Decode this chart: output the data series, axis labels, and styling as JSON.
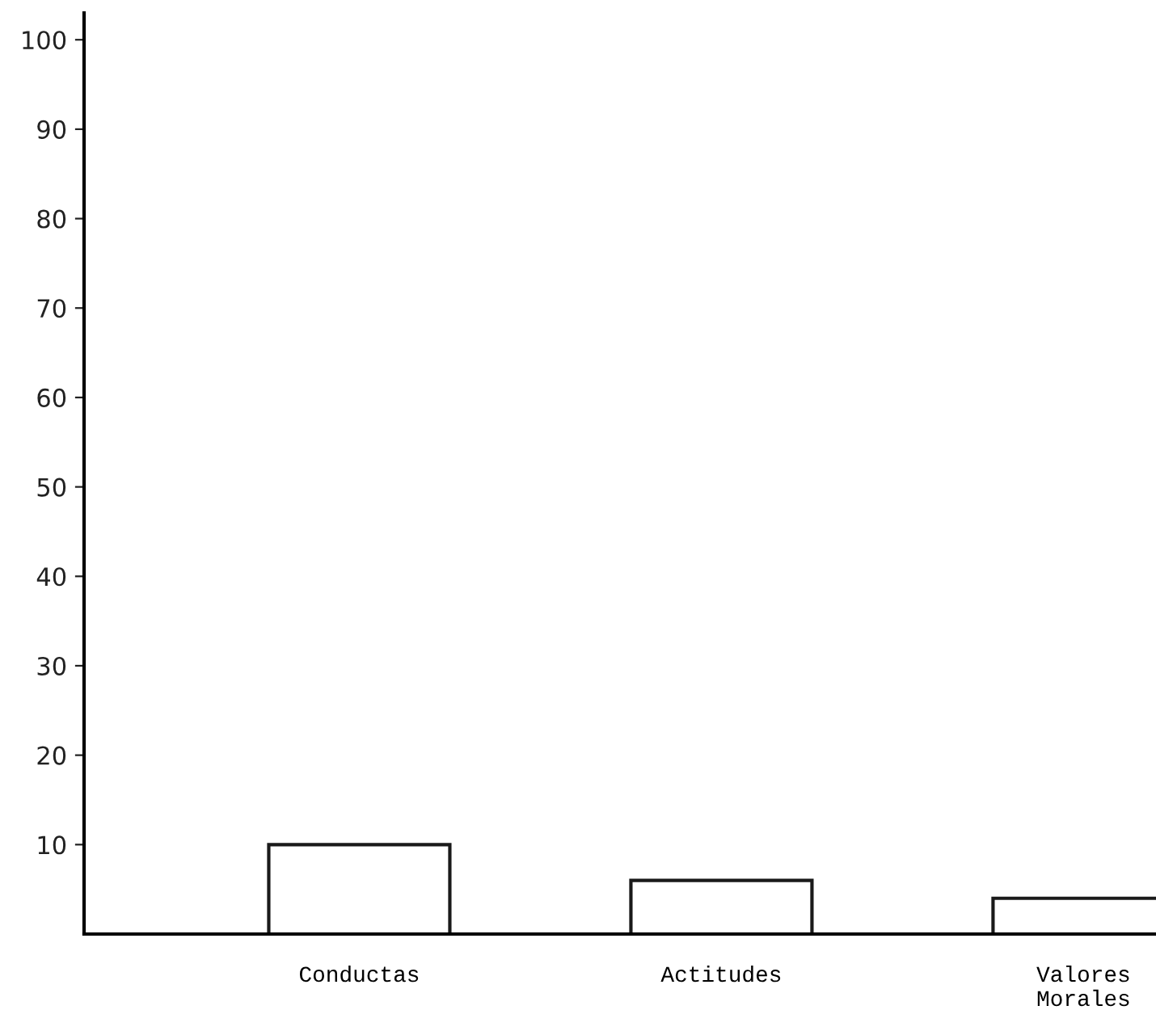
{
  "chart_data": {
    "type": "bar",
    "categories": [
      "Conductas",
      "Actitudes",
      "Valores\nMorales"
    ],
    "values": [
      10,
      6,
      4
    ],
    "color": "#ffffff",
    "ylim": [
      0,
      103
    ],
    "yticks": [
      10,
      20,
      30,
      40,
      50,
      60,
      70,
      80,
      90,
      100
    ],
    "grid": false
  }
}
